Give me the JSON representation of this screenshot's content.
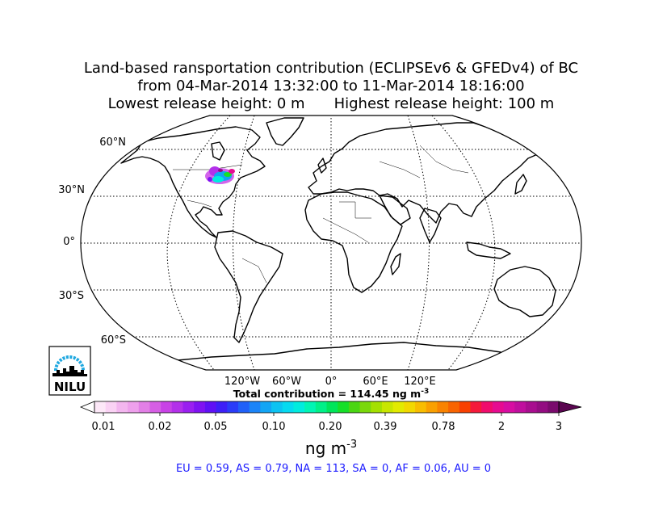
{
  "title": {
    "line1": "Land-based ransportation contribution (ECLIPSEv6 & GFEDv4) of BC",
    "line2": "from 04-Mar-2014 13:32:00 to 11-Mar-2014 18:16:00",
    "line3_low": "Lowest release height: 0 m",
    "line3_high": "Highest release height: 100 m"
  },
  "map": {
    "projection": "Robinson",
    "lat_labels": [
      "60°N",
      "30°N",
      "0°",
      "30°S",
      "60°S"
    ],
    "lon_labels": [
      "120°W",
      "60°W",
      "0°",
      "60°E",
      "120°E"
    ],
    "plume_region": "Eastern North America"
  },
  "logo": {
    "text": "NILU",
    "accent": "#1fa8e0"
  },
  "total_contribution": {
    "prefix": "Total contribution = 114.45 ng m",
    "exponent": "-3"
  },
  "colorbar": {
    "ticks": [
      "0.01",
      "0.02",
      "0.05",
      "0.10",
      "0.20",
      "0.39",
      "0.78",
      "2",
      "3"
    ],
    "units_base": "ng m",
    "units_exp": "-3",
    "colors": [
      "#fde8f8",
      "#fad2f4",
      "#f3b6ef",
      "#eea0ec",
      "#e27fe6",
      "#d65ee4",
      "#c842e6",
      "#b330ea",
      "#9a1ff0",
      "#7f12f2",
      "#5f10f5",
      "#3d1ff7",
      "#2a3cf8",
      "#2060f8",
      "#1a84f8",
      "#12a5f5",
      "#0cc3f2",
      "#05daf0",
      "#00ecde",
      "#00f5b4",
      "#00f088",
      "#00e55a",
      "#16df28",
      "#4ad612",
      "#7ad80a",
      "#a4e000",
      "#c8e600",
      "#e2ea00",
      "#f2d800",
      "#f8bd00",
      "#f9a000",
      "#f98300",
      "#f86400",
      "#f84000",
      "#f51a3a",
      "#f00c6c",
      "#e60b90",
      "#d70da2",
      "#c00e9e",
      "#a80d8f",
      "#930c81",
      "#7a0a6d"
    ],
    "under_color": "#ffffff",
    "over_color": "#5a0650"
  },
  "regions_text": "EU = 0.59,  AS = 0.79,  NA = 113,  SA = 0,  AF = 0.06,  AU = 0"
}
